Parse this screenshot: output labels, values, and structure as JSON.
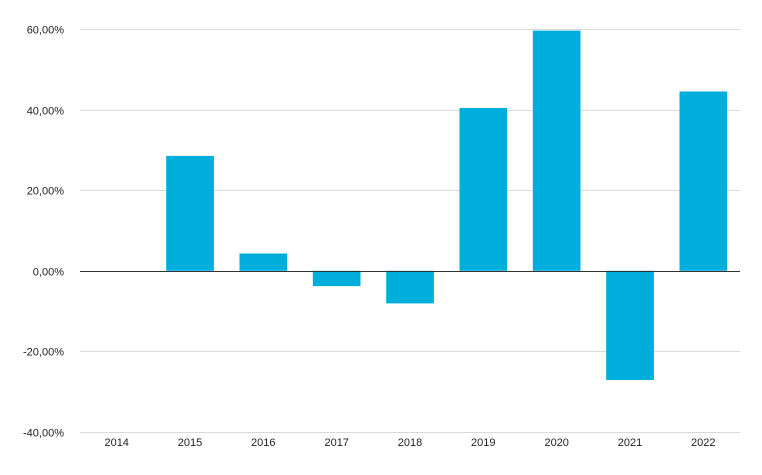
{
  "chart_data": {
    "type": "bar",
    "title": "",
    "xlabel": "",
    "ylabel": "",
    "categories": [
      "2014",
      "2015",
      "2016",
      "2017",
      "2018",
      "2019",
      "2020",
      "2021",
      "2022"
    ],
    "values": [
      0,
      28.5,
      4.3,
      -3.8,
      -8.1,
      40.4,
      59.6,
      -27.1,
      44.5
    ],
    "ylim": [
      -40,
      60
    ],
    "yticks": [
      -40,
      -20,
      0,
      20,
      40,
      60
    ],
    "ytick_labels": [
      "-40,00%",
      "-20,00%",
      "0,00%",
      "20,00%",
      "40,00%",
      "60,00%"
    ],
    "grid": true,
    "legend": "none",
    "bar_color": "#00AEDB",
    "gridline_color": "#D9D9D9",
    "zero_line_color": "#333333"
  }
}
